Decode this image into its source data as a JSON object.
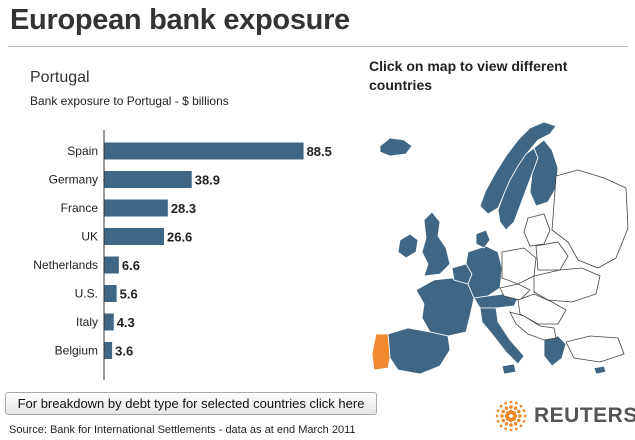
{
  "header": {
    "title": "European bank exposure"
  },
  "panel": {
    "country": "Portugal",
    "subtitle": "Bank exposure to Portugal - $ billions",
    "map_prompt": "Click on map to view different countries",
    "breakdown_label": "For breakdown by debt type for selected countries click here",
    "source": "Source: Bank for International Settlements - data as at end March 2011",
    "brand": "REUTERS"
  },
  "colors": {
    "bar": "#3f6685",
    "map_selected_country": "#f08a2e",
    "map_exposed_country": "#3f6685",
    "map_other_country": "#ffffff",
    "brand_orange": "#f08a2e"
  },
  "chart_data": {
    "type": "bar",
    "orientation": "horizontal",
    "title": "Portugal",
    "subtitle": "Bank exposure to Portugal - $ billions",
    "categories": [
      "Spain",
      "Germany",
      "France",
      "UK",
      "Netherlands",
      "U.S.",
      "Italy",
      "Belgium"
    ],
    "values": [
      88.5,
      38.9,
      28.3,
      26.6,
      6.6,
      5.6,
      4.3,
      3.6
    ],
    "data_labels": [
      "88.5",
      "38.9",
      "28.3",
      "26.6",
      "6.6",
      "5.6",
      "4.3",
      "3.6"
    ],
    "xlim": [
      0,
      100
    ],
    "grid": false,
    "legend": "none"
  }
}
